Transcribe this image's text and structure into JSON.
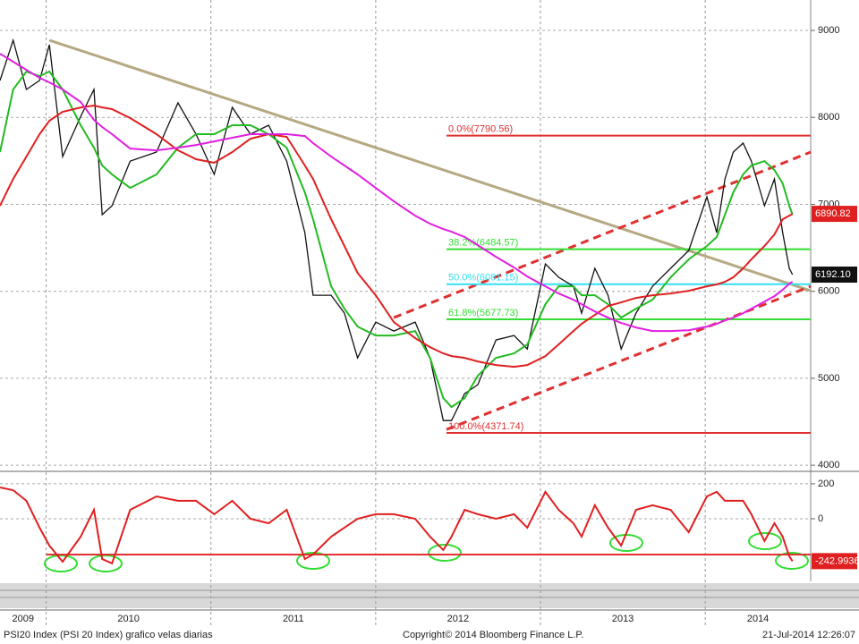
{
  "chart_data": [
    {
      "type": "line",
      "x": [
        2009.72,
        2009.8,
        2009.88,
        2009.96,
        2010.02,
        2010.1,
        2010.21,
        2010.29,
        2010.34,
        2010.4,
        2010.51,
        2010.67,
        2010.8,
        2010.91,
        2011.02,
        2011.13,
        2011.24,
        2011.35,
        2011.46,
        2011.57,
        2011.62,
        2011.73,
        2011.81,
        2011.89,
        2012.0,
        2012.11,
        2012.24,
        2012.33,
        2012.41,
        2012.46,
        2012.54,
        2012.62,
        2012.73,
        2012.84,
        2012.92,
        2013.03,
        2013.11,
        2013.2,
        2013.25,
        2013.33,
        2013.41,
        2013.49,
        2013.58,
        2013.68,
        2013.79,
        2013.9,
        2014.01,
        2014.07,
        2014.12,
        2014.17,
        2014.23,
        2014.28,
        2014.36,
        2014.42,
        2014.47,
        2014.51,
        2014.53
      ],
      "series": [
        {
          "color": "#111111",
          "tag": true,
          "values": [
            8424,
            8887,
            8321,
            8424,
            8835,
            7549,
            8012,
            8321,
            6881,
            6984,
            7498,
            7601,
            8167,
            7807,
            7344,
            8115,
            7807,
            7910,
            7498,
            6675,
            5955,
            5955,
            5749,
            5235,
            5646,
            5543,
            5646,
            5235,
            4514,
            4514,
            4823,
            4926,
            5440,
            5492,
            5337,
            6315,
            6161,
            6058,
            5749,
            6264,
            5955,
            5337,
            5749,
            6058,
            6264,
            6469,
            7086,
            6675,
            7292,
            7601,
            7704,
            7498,
            6984,
            7292,
            6675,
            6264,
            6192.1
          ],
          "value_labels": [
            null,
            null,
            null,
            null,
            null,
            null,
            null,
            null,
            null,
            null,
            null,
            null,
            null,
            null,
            null,
            null,
            null,
            null,
            null,
            null,
            null,
            null,
            null,
            null,
            null,
            null,
            null,
            null,
            null,
            null,
            null,
            null,
            null,
            null,
            null,
            null,
            null,
            null,
            null,
            null,
            null,
            null,
            null,
            null,
            null,
            null,
            null,
            null,
            null,
            null,
            null,
            null,
            null,
            null,
            null,
            null,
            "6192.10"
          ]
        },
        {
          "color": "#22bb22",
          "values": [
            7601,
            8321,
            8527,
            8475,
            8527,
            8321,
            7910,
            7652,
            7447,
            7344,
            7189,
            7344,
            7652,
            7807,
            7807,
            7910,
            7910,
            7807,
            7652,
            7138,
            6829,
            6058,
            5800,
            5595,
            5492,
            5492,
            5543,
            5235,
            4772,
            4669,
            4772,
            5029,
            5235,
            5286,
            5389,
            5852,
            6058,
            6058,
            5955,
            5955,
            5852,
            5698,
            5800,
            5903,
            6161,
            6367,
            6521,
            6624,
            6881,
            7138,
            7344,
            7447,
            7498,
            7395,
            7241,
            6984,
            6881
          ]
        },
        {
          "color": "#e02020",
          "tag": true,
          "values": [
            6984,
            7292,
            7549,
            7807,
            7961,
            8064,
            8115,
            8136,
            8115,
            8095,
            7992,
            7807,
            7622,
            7519,
            7478,
            7601,
            7755,
            7807,
            7776,
            7447,
            7292,
            6829,
            6521,
            6212,
            5955,
            5646,
            5461,
            5358,
            5286,
            5255,
            5235,
            5194,
            5152,
            5132,
            5152,
            5255,
            5389,
            5543,
            5626,
            5728,
            5831,
            5872,
            5924,
            5955,
            5975,
            6006,
            6058,
            6079,
            6109,
            6161,
            6264,
            6367,
            6521,
            6654,
            6829,
            6870,
            6890.82
          ]
        },
        {
          "color": "#e020e0",
          "values": [
            8733,
            8640,
            8547,
            8455,
            8403,
            8321,
            8177,
            7971,
            7889,
            7807,
            7642,
            7621,
            7652,
            7683,
            7724,
            7766,
            7807,
            7807,
            7807,
            7786,
            7704,
            7549,
            7447,
            7344,
            7189,
            7035,
            6870,
            6778,
            6716,
            6685,
            6624,
            6531,
            6397,
            6274,
            6171,
            6058,
            5975,
            5903,
            5852,
            5769,
            5697,
            5636,
            5584,
            5543,
            5543,
            5553,
            5595,
            5626,
            5667,
            5697,
            5749,
            5800,
            5883,
            5944,
            6016,
            6088,
            6109
          ]
        }
      ],
      "hlines": [
        {
          "label": "0.0%(7790.56)",
          "value": 7790.56,
          "color": "#e03030",
          "from": 2012.43
        },
        {
          "label": "38.2%(6484.57)",
          "value": 6484.57,
          "color": "#33dd33",
          "from": 2012.43
        },
        {
          "label": "50.0%(6081.15)",
          "value": 6081.15,
          "color": "#33e0f0",
          "from": 2012.43
        },
        {
          "label": "61.8%(5677.73)",
          "value": 5677.73,
          "color": "#33dd33",
          "from": 2012.43
        },
        {
          "label": "100.0%(4371.74)",
          "value": 4371.74,
          "color": "#e03030",
          "from": 2012.43
        }
      ],
      "trend_lines": [
        {
          "x": [
            2010.02,
            2014.64
          ],
          "values": [
            8887,
            6006
          ],
          "color": "#b5a882",
          "dashed": false
        },
        {
          "x": [
            2012.11,
            2014.64
          ],
          "values": [
            5698,
            7601
          ],
          "color": "#e03030",
          "dashed": true
        },
        {
          "x": [
            2012.43,
            2014.64
          ],
          "values": [
            4411,
            6058
          ],
          "color": "#e03030",
          "dashed": true
        }
      ],
      "xlim": [
        2009.72,
        2014.64
      ],
      "xticks": [
        {
          "value": 2009,
          "label": "2009"
        },
        {
          "value": 2010,
          "label": "2010"
        },
        {
          "value": 2011,
          "label": "2011"
        },
        {
          "value": 2012,
          "label": "2012"
        },
        {
          "value": 2013,
          "label": "2013"
        },
        {
          "value": 2014,
          "label": "2014"
        }
      ],
      "ylim": [
        3950,
        9350
      ],
      "yticks": [
        4000,
        5000,
        6000,
        7000,
        8000,
        9000
      ],
      "grid": true
    },
    {
      "type": "line",
      "series": [
        {
          "color": "#e02020",
          "tag": true,
          "values": [
            179,
            164,
            103,
            -51,
            -154,
            -246,
            -103,
            51,
            -231,
            -256,
            51,
            128,
            103,
            103,
            26,
            103,
            0,
            -26,
            51,
            -231,
            -205,
            -103,
            -51,
            0,
            26,
            26,
            0,
            -103,
            -179,
            -103,
            51,
            26,
            0,
            26,
            -51,
            154,
            51,
            -26,
            -103,
            77,
            -51,
            -154,
            51,
            77,
            51,
            -77,
            128,
            154,
            103,
            103,
            103,
            26,
            -128,
            -26,
            -103,
            -215,
            -242.9936
          ]
        }
      ],
      "hlines": [
        {
          "value": -205,
          "color": "#e03030",
          "from": 2010
        }
      ],
      "ylim": [
        -359,
        256
      ],
      "yticks": [
        200,
        0
      ],
      "grid": true
    }
  ],
  "footer": {
    "left": "PSI20 Index (PSI 20 Index) grafico velas diarias",
    "center": "Copyright© 2014 Bloomberg Finance L.P.",
    "right": "21-Jul-2014 12:26:07"
  }
}
